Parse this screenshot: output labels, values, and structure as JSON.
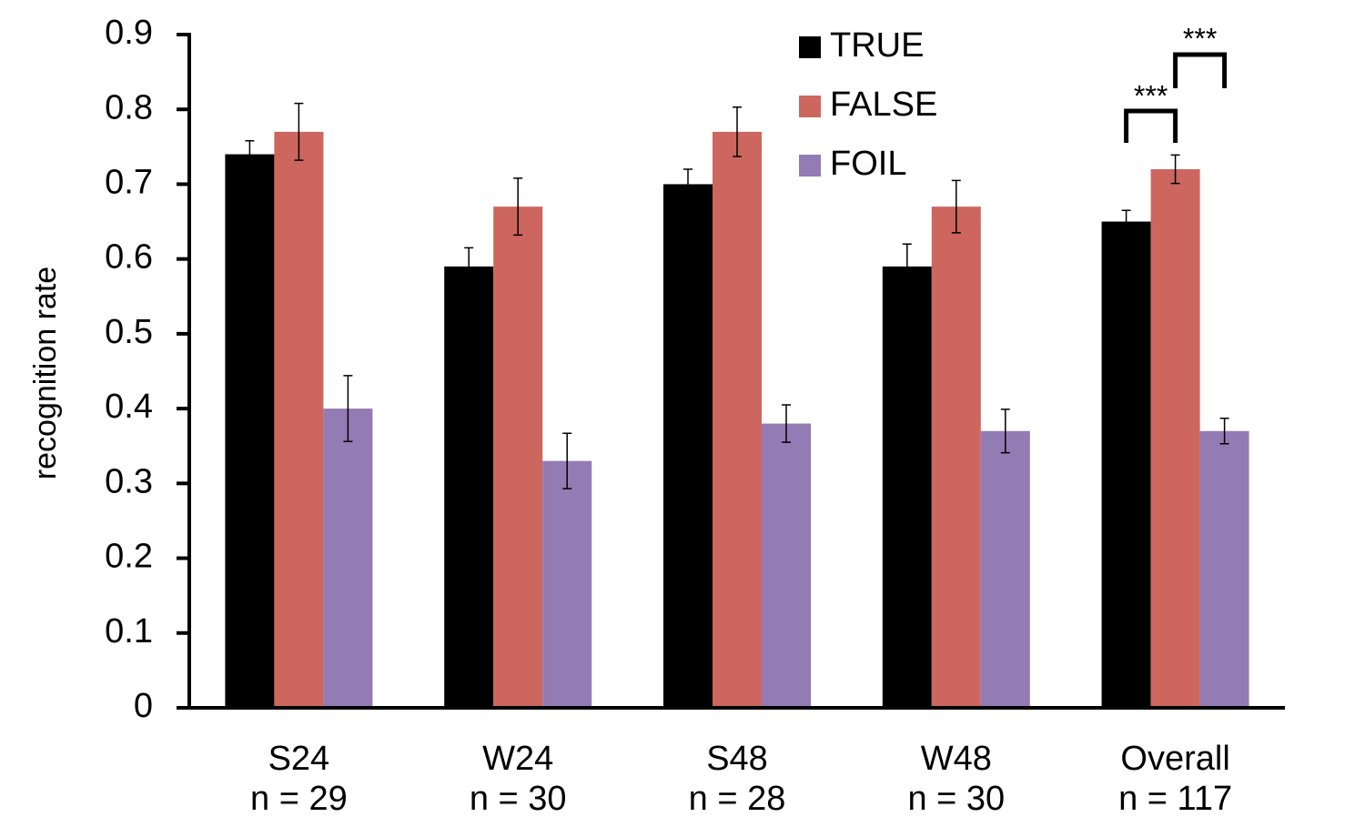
{
  "chart_data": {
    "type": "bar",
    "y_label": "recognition rate",
    "categories": [
      "S24",
      "W24",
      "S48",
      "W48",
      "Overall"
    ],
    "category_subtitles": [
      "n = 29",
      "n = 30",
      "n = 28",
      "n = 30",
      "n = 117"
    ],
    "series": [
      {
        "name": "TRUE",
        "color": "#000000",
        "values": [
          0.74,
          0.59,
          0.7,
          0.59,
          0.65
        ],
        "errors": [
          0.018,
          0.025,
          0.02,
          0.03,
          0.015
        ]
      },
      {
        "name": "FALSE",
        "color": "#cd665f",
        "values": [
          0.77,
          0.67,
          0.77,
          0.67,
          0.72
        ],
        "errors": [
          0.038,
          0.038,
          0.033,
          0.035,
          0.019
        ]
      },
      {
        "name": "FOIL",
        "color": "#937bb4",
        "values": [
          0.4,
          0.33,
          0.38,
          0.37,
          0.37
        ],
        "errors": [
          0.044,
          0.037,
          0.025,
          0.029,
          0.017
        ]
      }
    ],
    "ylim": [
      0,
      0.9
    ],
    "yticks": [
      0,
      0.1,
      0.2,
      0.3,
      0.4,
      0.5,
      0.6,
      0.7,
      0.8,
      0.9
    ],
    "legend": "top",
    "annotations": [
      "***",
      "***"
    ]
  }
}
